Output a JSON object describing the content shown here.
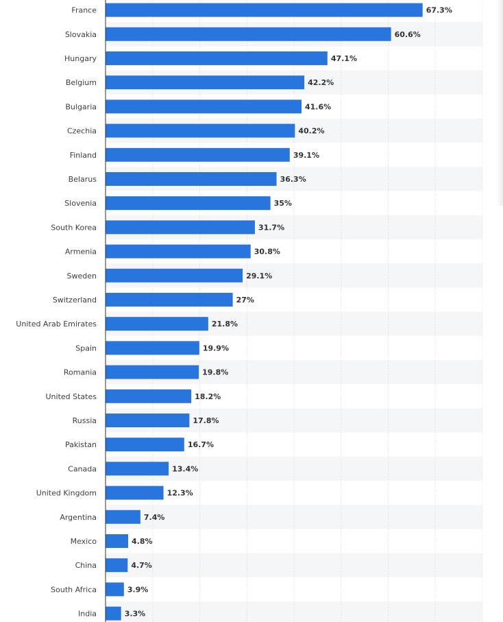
{
  "chart_data": {
    "type": "bar",
    "orientation": "horizontal",
    "title": "",
    "xlabel": "",
    "ylabel": "",
    "value_suffix": "%",
    "xlim": [
      0,
      80
    ],
    "grid": true,
    "categories": [
      "France",
      "Slovakia",
      "Hungary",
      "Belgium",
      "Bulgaria",
      "Czechia",
      "Finland",
      "Belarus",
      "Slovenia",
      "South Korea",
      "Armenia",
      "Sweden",
      "Switzerland",
      "United Arab Emirates",
      "Spain",
      "Romania",
      "United States",
      "Russia",
      "Pakistan",
      "Canada",
      "United Kingdom",
      "Argentina",
      "Mexico",
      "China",
      "South Africa",
      "India"
    ],
    "values": [
      67.3,
      60.6,
      47.1,
      42.2,
      41.6,
      40.2,
      39.1,
      36.3,
      35,
      31.7,
      30.8,
      29.1,
      27,
      21.8,
      19.9,
      19.8,
      18.2,
      17.8,
      16.7,
      13.4,
      12.3,
      7.4,
      4.8,
      4.7,
      3.9,
      3.3
    ],
    "labels": [
      "67.3%",
      "60.6%",
      "47.1%",
      "42.2%",
      "41.6%",
      "40.2%",
      "39.1%",
      "36.3%",
      "35%",
      "31.7%",
      "30.8%",
      "29.1%",
      "27%",
      "21.8%",
      "19.9%",
      "19.8%",
      "18.2%",
      "17.8%",
      "16.7%",
      "13.4%",
      "12.3%",
      "7.4%",
      "4.8%",
      "4.7%",
      "3.9%",
      "3.3%"
    ],
    "bar_color": "#2876dd",
    "stripe_color": "#f5f6f8",
    "grid_color": "#d9d9d9",
    "axis_color": "#333333"
  }
}
